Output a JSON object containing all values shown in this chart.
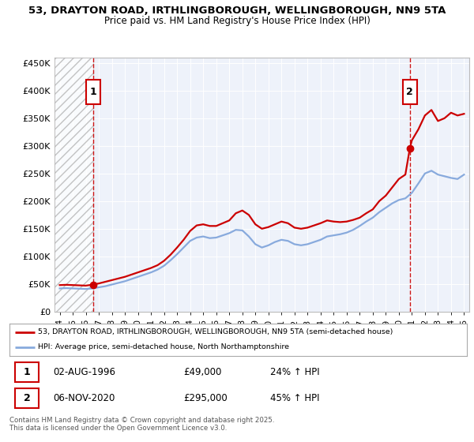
{
  "title_line1": "53, DRAYTON ROAD, IRTHLINGBOROUGH, WELLINGBOROUGH, NN9 5TA",
  "title_line2": "Price paid vs. HM Land Registry's House Price Index (HPI)",
  "ylim": [
    0,
    460000
  ],
  "yticks": [
    0,
    50000,
    100000,
    150000,
    200000,
    250000,
    300000,
    350000,
    400000,
    450000
  ],
  "ytick_labels": [
    "£0",
    "£50K",
    "£100K",
    "£150K",
    "£200K",
    "£250K",
    "£300K",
    "£350K",
    "£400K",
    "£450K"
  ],
  "xlim_start": 1993.6,
  "xlim_end": 2025.4,
  "sale1_year": 1996.58,
  "sale1_price": 49000,
  "sale1_label": "1",
  "sale1_date": "02-AUG-1996",
  "sale1_amount": "£49,000",
  "sale1_hpi": "24% ↑ HPI",
  "sale2_year": 2020.84,
  "sale2_price": 295000,
  "sale2_label": "2",
  "sale2_date": "06-NOV-2020",
  "sale2_amount": "£295,000",
  "sale2_hpi": "45% ↑ HPI",
  "legend_line1": "53, DRAYTON ROAD, IRTHLINGBOROUGH, WELLINGBOROUGH, NN9 5TA (semi-detached house)",
  "legend_line2": "HPI: Average price, semi-detached house, North Northamptonshire",
  "footnote": "Contains HM Land Registry data © Crown copyright and database right 2025.\nThis data is licensed under the Open Government Licence v3.0.",
  "line_color_red": "#cc0000",
  "line_color_blue": "#88aadd",
  "bg_color": "#ffffff",
  "plot_bg": "#eef2fa",
  "red_x": [
    1994.0,
    1994.5,
    1995.0,
    1995.5,
    1996.0,
    1996.58,
    1997.0,
    1997.5,
    1998.0,
    1998.5,
    1999.0,
    1999.5,
    2000.0,
    2000.5,
    2001.0,
    2001.5,
    2002.0,
    2002.5,
    2003.0,
    2003.5,
    2004.0,
    2004.5,
    2005.0,
    2005.5,
    2006.0,
    2006.5,
    2007.0,
    2007.5,
    2008.0,
    2008.5,
    2009.0,
    2009.5,
    2010.0,
    2010.5,
    2011.0,
    2011.5,
    2012.0,
    2012.5,
    2013.0,
    2013.5,
    2014.0,
    2014.5,
    2015.0,
    2015.5,
    2016.0,
    2016.5,
    2017.0,
    2017.5,
    2018.0,
    2018.5,
    2019.0,
    2019.5,
    2020.0,
    2020.5,
    2020.84,
    2021.0,
    2021.5,
    2022.0,
    2022.5,
    2023.0,
    2023.5,
    2024.0,
    2024.5,
    2025.0
  ],
  "red_y": [
    48000,
    48500,
    48000,
    47500,
    47000,
    49000,
    51000,
    54000,
    57000,
    60000,
    63000,
    67000,
    71000,
    75000,
    79000,
    84000,
    92000,
    103000,
    116000,
    130000,
    146000,
    156000,
    158000,
    155000,
    155000,
    160000,
    165000,
    178000,
    183000,
    175000,
    158000,
    150000,
    153000,
    158000,
    163000,
    160000,
    152000,
    150000,
    152000,
    156000,
    160000,
    165000,
    163000,
    162000,
    163000,
    166000,
    170000,
    178000,
    185000,
    200000,
    210000,
    225000,
    240000,
    248000,
    295000,
    310000,
    330000,
    355000,
    365000,
    345000,
    350000,
    360000,
    355000,
    358000
  ],
  "blue_x": [
    1994.0,
    1994.5,
    1995.0,
    1995.5,
    1996.0,
    1996.5,
    1997.0,
    1997.5,
    1998.0,
    1998.5,
    1999.0,
    1999.5,
    2000.0,
    2000.5,
    2001.0,
    2001.5,
    2002.0,
    2002.5,
    2003.0,
    2003.5,
    2004.0,
    2004.5,
    2005.0,
    2005.5,
    2006.0,
    2006.5,
    2007.0,
    2007.5,
    2008.0,
    2008.5,
    2009.0,
    2009.5,
    2010.0,
    2010.5,
    2011.0,
    2011.5,
    2012.0,
    2012.5,
    2013.0,
    2013.5,
    2014.0,
    2014.5,
    2015.0,
    2015.5,
    2016.0,
    2016.5,
    2017.0,
    2017.5,
    2018.0,
    2018.5,
    2019.0,
    2019.5,
    2020.0,
    2020.5,
    2021.0,
    2021.5,
    2022.0,
    2022.5,
    2023.0,
    2023.5,
    2024.0,
    2024.5,
    2025.0
  ],
  "blue_y": [
    42000,
    42500,
    42000,
    41500,
    41000,
    42000,
    44000,
    46000,
    49000,
    52000,
    55000,
    59000,
    63000,
    67000,
    71000,
    76000,
    83000,
    93000,
    104000,
    116000,
    128000,
    134000,
    136000,
    133000,
    134000,
    138000,
    142000,
    148000,
    147000,
    136000,
    122000,
    116000,
    120000,
    126000,
    130000,
    128000,
    122000,
    120000,
    122000,
    126000,
    130000,
    136000,
    138000,
    140000,
    143000,
    148000,
    155000,
    163000,
    170000,
    180000,
    188000,
    196000,
    202000,
    205000,
    215000,
    232000,
    250000,
    255000,
    248000,
    245000,
    242000,
    240000,
    248000
  ]
}
